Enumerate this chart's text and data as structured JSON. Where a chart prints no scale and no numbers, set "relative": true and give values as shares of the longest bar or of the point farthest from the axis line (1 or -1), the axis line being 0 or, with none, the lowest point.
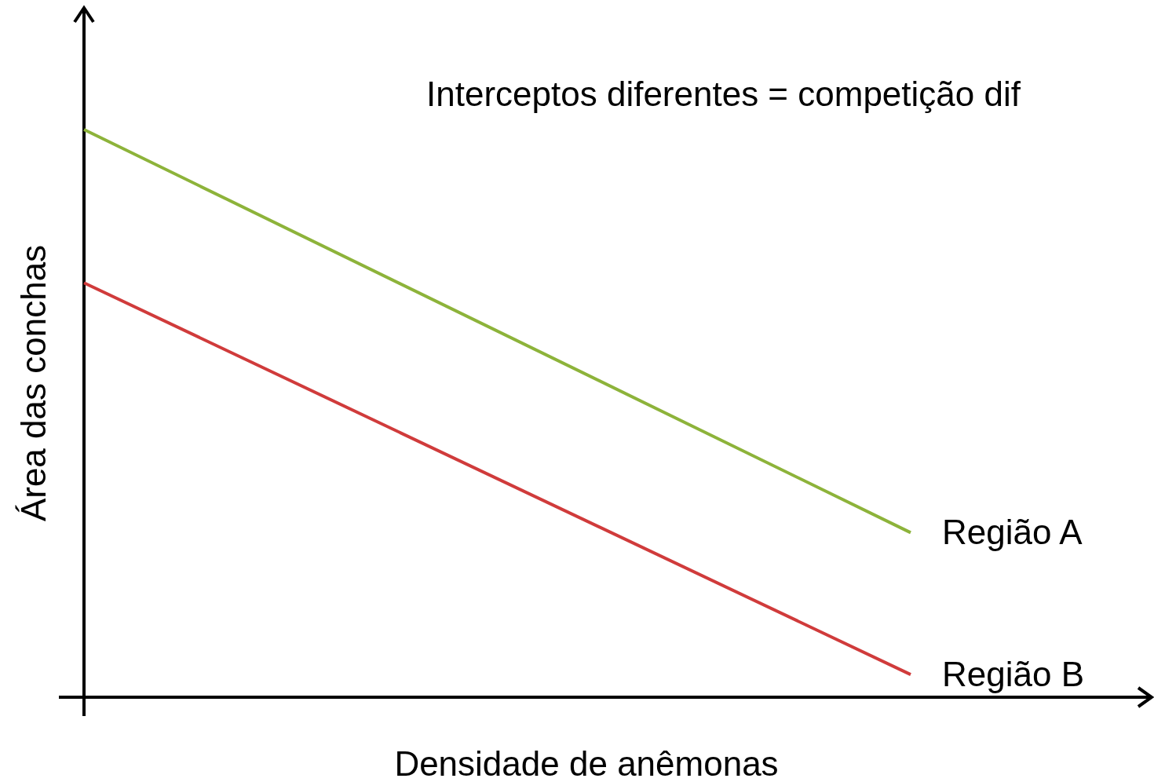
{
  "chart_data": {
    "type": "line",
    "relative": true,
    "xlabel": "Densidade de anêmonas",
    "ylabel": "Área das conchas",
    "annotations": [
      "Interceptos diferentes = competição dif"
    ],
    "categories": [
      null,
      null
    ],
    "marker": "none",
    "line_style": "solid",
    "series": [
      {
        "name": "Região A",
        "color": "#8db33a",
        "values": [
          1,
          0.29
        ]
      },
      {
        "name": "Região B",
        "color": "#d03b3b",
        "values": [
          0.73,
          0.04
        ]
      }
    ]
  }
}
